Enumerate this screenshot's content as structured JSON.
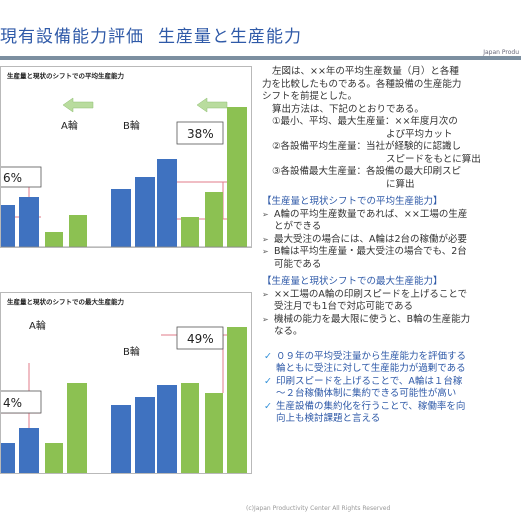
{
  "header": {
    "title": "現有設備能力評価",
    "subtitle": "生産量と生産能力",
    "brand": "Japan Produ"
  },
  "panels": [
    {
      "title": "生産量と現状のシフトでの平均生産能力",
      "label_a": "A輪",
      "label_b": "B輪",
      "pct_a": "6%",
      "pct_b": "38%"
    },
    {
      "title": "生産量と現状のシフトでの最大生産能力",
      "label_a": "A輪",
      "label_b": "B輪",
      "pct_a": "4%",
      "pct_b": "49%"
    }
  ],
  "text": {
    "intro": "左図は、××年の平均生産数量（月）と各種",
    "intro2": "力を比較したものである。各種設備の生産能力",
    "intro3": "シフトを前提とした。",
    "method": "算出方法は、下記のとおりである。",
    "item1": "①最小、平均、最大生産量：××年度月次の",
    "item1b": "よび平均カット",
    "item2": "②各設備平均生産量：当社が経験的に認識し",
    "item2b": "スピードをもとに算出",
    "item3": "③各設備最大生産量：各設備の最大印刷スピ",
    "item3b": "に算出",
    "head1": "【生産量と現状シフトでの平均生産能力】",
    "b1": "A輪の平均生産数量であれば、××工場の生産",
    "b1b": "とができる",
    "b2": "最大受注の場合には、A輪は2台の稼働が必要",
    "b3": "B輪は平均生産量・最大受注の場合でも、2台",
    "b3b": "可能である",
    "head2": "【生産量と現状シフトでの最大生産能力】",
    "b4": "××工場のA輪の印刷スピードを上げることで",
    "b4b": "受注月でも1台で対応可能である",
    "b5": "機械の能力を最大限に使うと、B輪の生産能力",
    "b5b": "なる。",
    "c1": "０９年の平均受注量から生産能力を評価する",
    "c1b": "輪ともに受注に対して生産能力が過剰である",
    "c2": "印刷スピードを上げることで、A輪は１台稼",
    "c2b": "～２台稼働体制に集約できる可能性が高い",
    "c3": "生産設備の集約化を行うことで、稼働率を向",
    "c3b": "向上も検討課題と言える"
  },
  "footer": "(c)Japan Productivity Center All Rights Reserved",
  "colors": {
    "blue_bar": "#3f72c0",
    "green_bar": "#8cc152",
    "pink_line": "#e07b8a",
    "arrow": "#a8d08d"
  }
}
